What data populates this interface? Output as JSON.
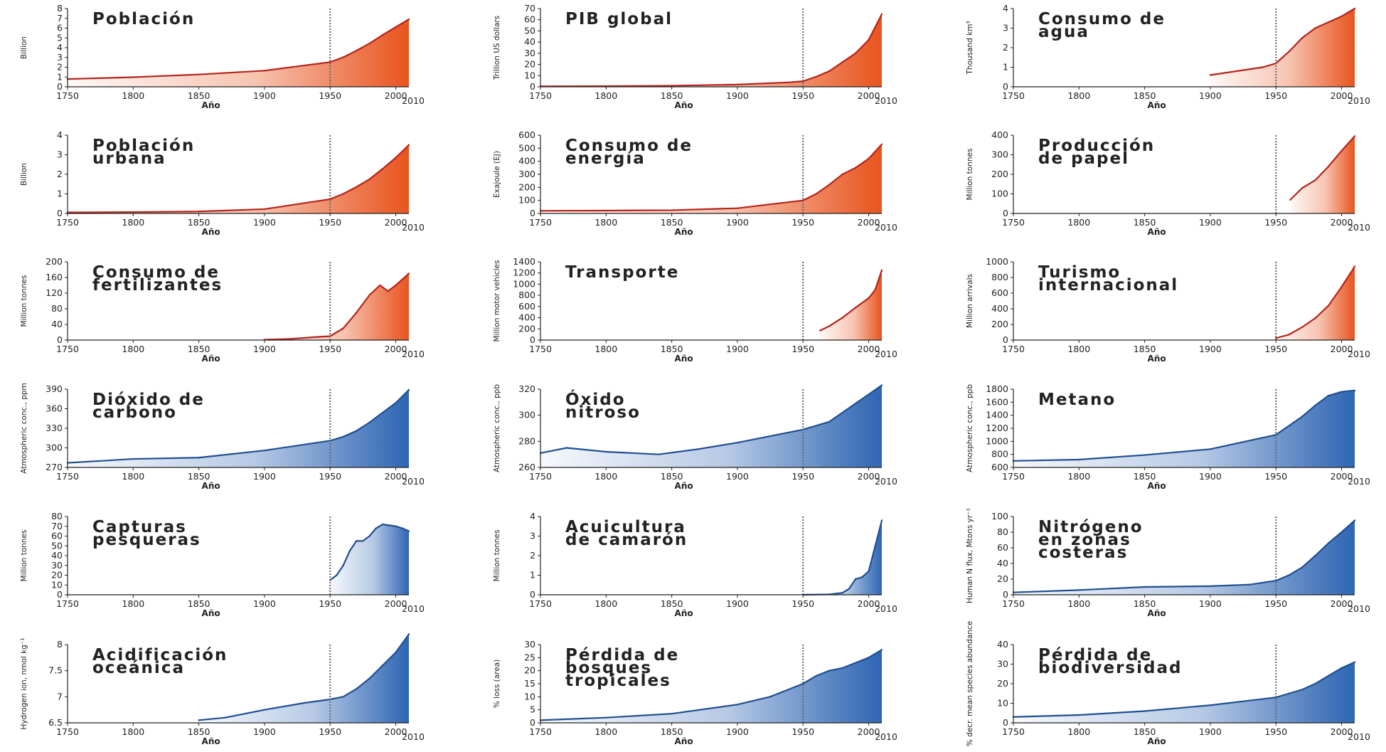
{
  "colors": {
    "red_line": "#b5241a",
    "red_fill": "#e8541e",
    "blue_line": "#1f4f91",
    "blue_fill": "#2e65b3",
    "axis": "#222222",
    "marker": "#666666"
  },
  "marker_year": 1950,
  "chart_data": [
    {
      "type": "area",
      "title": [
        "Población"
      ],
      "ylabel": "Billion",
      "xlabel": "Año",
      "xlim": [
        1750,
        2010
      ],
      "xticks": [
        1750,
        1800,
        1850,
        1900,
        1950,
        2000
      ],
      "xmax_label": "2010",
      "ylim": [
        0,
        8
      ],
      "yticks": [
        0,
        1,
        2,
        3,
        4,
        5,
        6,
        7,
        8
      ],
      "color": "red",
      "x": [
        1750,
        1800,
        1850,
        1900,
        1950,
        1960,
        1970,
        1980,
        1990,
        2000,
        2010
      ],
      "y": [
        0.79,
        0.98,
        1.26,
        1.65,
        2.52,
        3.02,
        3.69,
        4.43,
        5.3,
        6.1,
        6.9
      ]
    },
    {
      "type": "area",
      "title": [
        "PIB global"
      ],
      "ylabel": "Trillion US dollars",
      "xlabel": "Año",
      "xlim": [
        1750,
        2010
      ],
      "xticks": [
        1750,
        1800,
        1850,
        1900,
        1950,
        2000
      ],
      "xmax_label": "2010",
      "ylim": [
        0,
        70
      ],
      "yticks": [
        0,
        10,
        20,
        30,
        40,
        50,
        60,
        70
      ],
      "color": "red",
      "x": [
        1750,
        1800,
        1850,
        1900,
        1940,
        1950,
        1960,
        1970,
        1980,
        1990,
        2000,
        2010
      ],
      "y": [
        0.4,
        0.6,
        1,
        2,
        4,
        5,
        9,
        14,
        22,
        30,
        42,
        65
      ]
    },
    {
      "type": "area",
      "title": [
        "Consumo de",
        "agua"
      ],
      "ylabel": "Thousand km³",
      "xlabel": "Año",
      "xlim": [
        1750,
        2010
      ],
      "xticks": [
        1750,
        1800,
        1850,
        1900,
        1950,
        2000
      ],
      "xmax_label": "2010",
      "ylim": [
        0,
        4
      ],
      "yticks": [
        0,
        1,
        2,
        3,
        4
      ],
      "color": "red",
      "x": [
        1900,
        1920,
        1940,
        1950,
        1960,
        1970,
        1980,
        1990,
        2000,
        2010
      ],
      "y": [
        0.6,
        0.8,
        1.0,
        1.2,
        1.8,
        2.5,
        3.0,
        3.3,
        3.6,
        4.0
      ]
    },
    {
      "type": "area",
      "title": [
        "Población",
        "urbana"
      ],
      "ylabel": "Billion",
      "xlabel": "Año",
      "xlim": [
        1750,
        2010
      ],
      "xticks": [
        1750,
        1800,
        1850,
        1900,
        1950,
        2000
      ],
      "xmax_label": "2010",
      "ylim": [
        0,
        4
      ],
      "yticks": [
        0,
        1,
        2,
        3,
        4
      ],
      "color": "red",
      "x": [
        1750,
        1800,
        1850,
        1900,
        1950,
        1960,
        1970,
        1980,
        1990,
        2000,
        2010
      ],
      "y": [
        0.05,
        0.07,
        0.1,
        0.22,
        0.73,
        1.0,
        1.35,
        1.75,
        2.28,
        2.85,
        3.5
      ]
    },
    {
      "type": "area",
      "title": [
        "Consumo de",
        "energía"
      ],
      "ylabel": "Exajoule (EJ)",
      "xlabel": "Año",
      "xlim": [
        1750,
        2010
      ],
      "xticks": [
        1750,
        1800,
        1850,
        1900,
        1950,
        2000
      ],
      "xmax_label": "2010",
      "ylim": [
        0,
        600
      ],
      "yticks": [
        0,
        100,
        200,
        300,
        400,
        500,
        600
      ],
      "color": "red",
      "x": [
        1750,
        1800,
        1850,
        1900,
        1950,
        1960,
        1970,
        1980,
        1990,
        2000,
        2010
      ],
      "y": [
        20,
        22,
        25,
        40,
        100,
        150,
        220,
        300,
        350,
        420,
        530
      ]
    },
    {
      "type": "area",
      "title": [
        "Producción",
        "de papel"
      ],
      "ylabel": "Million tonnes",
      "xlabel": "Año",
      "xlim": [
        1750,
        2010
      ],
      "xticks": [
        1750,
        1800,
        1850,
        1900,
        1950,
        2000
      ],
      "xmax_label": "2010",
      "ylim": [
        0,
        400
      ],
      "yticks": [
        0,
        100,
        200,
        300,
        400
      ],
      "color": "red",
      "x": [
        1961,
        1970,
        1980,
        1990,
        2000,
        2010
      ],
      "y": [
        70,
        130,
        170,
        240,
        320,
        395
      ]
    },
    {
      "type": "area",
      "title": [
        "Consumo de",
        "fertilizantes"
      ],
      "ylabel": "Million tonnes",
      "xlabel": "Año",
      "xlim": [
        1750,
        2010
      ],
      "xticks": [
        1750,
        1800,
        1850,
        1900,
        1950,
        2000
      ],
      "xmax_label": "2010",
      "ylim": [
        0,
        200
      ],
      "yticks": [
        0,
        40,
        80,
        120,
        160,
        200
      ],
      "color": "red",
      "x": [
        1900,
        1920,
        1940,
        1950,
        1960,
        1970,
        1980,
        1988,
        1994,
        2000,
        2010
      ],
      "y": [
        1,
        3,
        8,
        10,
        30,
        70,
        115,
        140,
        125,
        140,
        170
      ]
    },
    {
      "type": "area",
      "title": [
        "Transporte"
      ],
      "ylabel": "Million motor vehicles",
      "xlabel": "Año",
      "xlim": [
        1750,
        2010
      ],
      "xticks": [
        1750,
        1800,
        1850,
        1900,
        1950,
        2000
      ],
      "xmax_label": "2010",
      "ylim": [
        0,
        1400
      ],
      "yticks": [
        0,
        200,
        400,
        600,
        800,
        1000,
        1200,
        1400
      ],
      "color": "red",
      "x": [
        1963,
        1970,
        1980,
        1990,
        2000,
        2005,
        2010
      ],
      "y": [
        170,
        250,
        400,
        580,
        750,
        900,
        1250
      ]
    },
    {
      "type": "area",
      "title": [
        "Turismo",
        "internacional"
      ],
      "ylabel": "Million arrivals",
      "xlabel": "Año",
      "xlim": [
        1750,
        2010
      ],
      "xticks": [
        1750,
        1800,
        1850,
        1900,
        1950,
        2000
      ],
      "xmax_label": "2010",
      "ylim": [
        0,
        1000
      ],
      "yticks": [
        0,
        200,
        400,
        600,
        800,
        1000
      ],
      "color": "red",
      "x": [
        1950,
        1960,
        1970,
        1980,
        1990,
        2000,
        2010
      ],
      "y": [
        25,
        70,
        165,
        280,
        440,
        680,
        940
      ]
    },
    {
      "type": "area",
      "title": [
        "Dióxido de",
        "carbono"
      ],
      "ylabel": "Atmospheric conc., ppm",
      "xlabel": "Año",
      "xlim": [
        1750,
        2010
      ],
      "xticks": [
        1750,
        1800,
        1850,
        1900,
        1950,
        2000
      ],
      "xmax_label": "2010",
      "ylim": [
        270,
        390
      ],
      "yticks": [
        270,
        300,
        330,
        360,
        390
      ],
      "color": "blue",
      "x": [
        1750,
        1800,
        1850,
        1900,
        1950,
        1960,
        1970,
        1980,
        1990,
        2000,
        2010
      ],
      "y": [
        277,
        283,
        285,
        296,
        311,
        317,
        326,
        339,
        354,
        369,
        389
      ]
    },
    {
      "type": "area",
      "title": [
        "Óxido",
        "nitroso"
      ],
      "ylabel": "Atmospheric conc., ppb",
      "xlabel": "Año",
      "xlim": [
        1750,
        2010
      ],
      "xticks": [
        1750,
        1800,
        1850,
        1900,
        1950,
        2000
      ],
      "xmax_label": "2010",
      "ylim": [
        260,
        320
      ],
      "yticks": [
        260,
        280,
        300,
        320
      ],
      "color": "blue",
      "x": [
        1750,
        1770,
        1800,
        1840,
        1870,
        1900,
        1950,
        1970,
        1990,
        2010
      ],
      "y": [
        271,
        275,
        272,
        270,
        274,
        279,
        289,
        295,
        309,
        323
      ]
    },
    {
      "type": "area",
      "title": [
        "Metano"
      ],
      "ylabel": "Atmospheric conc., ppb",
      "xlabel": "Año",
      "xlim": [
        1750,
        2010
      ],
      "xticks": [
        1750,
        1800,
        1850,
        1900,
        1950,
        2000
      ],
      "xmax_label": "2010",
      "ylim": [
        600,
        1800
      ],
      "yticks": [
        600,
        800,
        1000,
        1200,
        1400,
        1600,
        1800
      ],
      "color": "blue",
      "x": [
        1750,
        1800,
        1850,
        1900,
        1950,
        1970,
        1980,
        1990,
        2000,
        2010
      ],
      "y": [
        700,
        720,
        790,
        880,
        1100,
        1380,
        1550,
        1700,
        1760,
        1780
      ]
    },
    {
      "type": "area",
      "title": [
        "Capturas",
        "pesqueras"
      ],
      "ylabel": "Million tonnes",
      "xlabel": "Año",
      "xlim": [
        1750,
        2010
      ],
      "xticks": [
        1750,
        1800,
        1850,
        1900,
        1950,
        2000
      ],
      "xmax_label": "2010",
      "ylim": [
        0,
        80
      ],
      "yticks": [
        0,
        10,
        20,
        30,
        40,
        50,
        60,
        70,
        80
      ],
      "color": "blue",
      "x": [
        1950,
        1955,
        1960,
        1965,
        1970,
        1975,
        1980,
        1985,
        1990,
        1995,
        2000,
        2005,
        2010
      ],
      "y": [
        15,
        20,
        30,
        45,
        55,
        55,
        60,
        68,
        72,
        71,
        70,
        68,
        65
      ]
    },
    {
      "type": "area",
      "title": [
        "Acuicultura",
        "de camarón"
      ],
      "ylabel": "Million tonnes",
      "xlabel": "Año",
      "xlim": [
        1750,
        2010
      ],
      "xticks": [
        1750,
        1800,
        1850,
        1900,
        1950,
        2000
      ],
      "xmax_label": "2010",
      "ylim": [
        0,
        4
      ],
      "yticks": [
        0,
        1,
        2,
        3,
        4
      ],
      "color": "blue",
      "x": [
        1950,
        1970,
        1980,
        1985,
        1990,
        1995,
        2000,
        2005,
        2010
      ],
      "y": [
        0,
        0.02,
        0.1,
        0.3,
        0.8,
        0.9,
        1.2,
        2.5,
        3.8
      ]
    },
    {
      "type": "area",
      "title": [
        "Nitrógeno",
        "en zonas",
        "costeras"
      ],
      "ylabel": "Human N flux, Mtons yr⁻¹",
      "xlabel": "Año",
      "xlim": [
        1750,
        2010
      ],
      "xticks": [
        1750,
        1800,
        1850,
        1900,
        1950,
        2000
      ],
      "xmax_label": "2010",
      "ylim": [
        0,
        100
      ],
      "yticks": [
        0,
        20,
        40,
        60,
        80,
        100
      ],
      "color": "blue",
      "x": [
        1750,
        1800,
        1850,
        1900,
        1930,
        1950,
        1960,
        1970,
        1980,
        1990,
        2000,
        2010
      ],
      "y": [
        3,
        6,
        10,
        11,
        13,
        18,
        25,
        35,
        50,
        66,
        80,
        95
      ]
    },
    {
      "type": "area",
      "title": [
        "Acidificación",
        "oceánica"
      ],
      "ylabel": "Hydrogen ion, nmol kg⁻¹",
      "xlabel": "Año",
      "xlim": [
        1750,
        2010
      ],
      "xticks": [
        1750,
        1800,
        1850,
        1900,
        1950,
        2000
      ],
      "xmax_label": "2010",
      "ylim": [
        6.5,
        8.0
      ],
      "yticks": [
        6.5,
        7.0,
        7.5,
        8.0
      ],
      "color": "blue",
      "x": [
        1850,
        1870,
        1900,
        1930,
        1950,
        1960,
        1970,
        1980,
        1990,
        2000,
        2010
      ],
      "y": [
        6.55,
        6.6,
        6.75,
        6.88,
        6.95,
        7.0,
        7.15,
        7.35,
        7.6,
        7.85,
        8.2
      ]
    },
    {
      "type": "area",
      "title": [
        "Pérdida de",
        "bosques",
        "tropicales"
      ],
      "ylabel": "% loss (area)",
      "xlabel": "Año",
      "xlim": [
        1750,
        2010
      ],
      "xticks": [
        1750,
        1800,
        1850,
        1900,
        1950,
        2000
      ],
      "xmax_label": "2010",
      "ylim": [
        0,
        30
      ],
      "yticks": [
        0,
        5,
        10,
        15,
        20,
        25,
        30
      ],
      "color": "blue",
      "x": [
        1750,
        1800,
        1850,
        1900,
        1925,
        1950,
        1960,
        1970,
        1980,
        1990,
        2000,
        2010
      ],
      "y": [
        1,
        2,
        3.5,
        7,
        10,
        15,
        18,
        20,
        21,
        23,
        25,
        28
      ]
    },
    {
      "type": "area",
      "title": [
        "Pérdida de",
        "biodiversidad"
      ],
      "ylabel": "% decr. mean species abundance",
      "xlabel": "Año",
      "xlim": [
        1750,
        2010
      ],
      "xticks": [
        1750,
        1800,
        1850,
        1900,
        1950,
        2000
      ],
      "xmax_label": "2010",
      "ylim": [
        0,
        40
      ],
      "yticks": [
        0,
        10,
        20,
        30,
        40
      ],
      "color": "blue",
      "x": [
        1750,
        1800,
        1850,
        1900,
        1950,
        1960,
        1970,
        1980,
        1990,
        2000,
        2010
      ],
      "y": [
        3,
        4,
        6,
        9,
        13,
        15,
        17,
        20,
        24,
        28,
        31
      ]
    }
  ]
}
